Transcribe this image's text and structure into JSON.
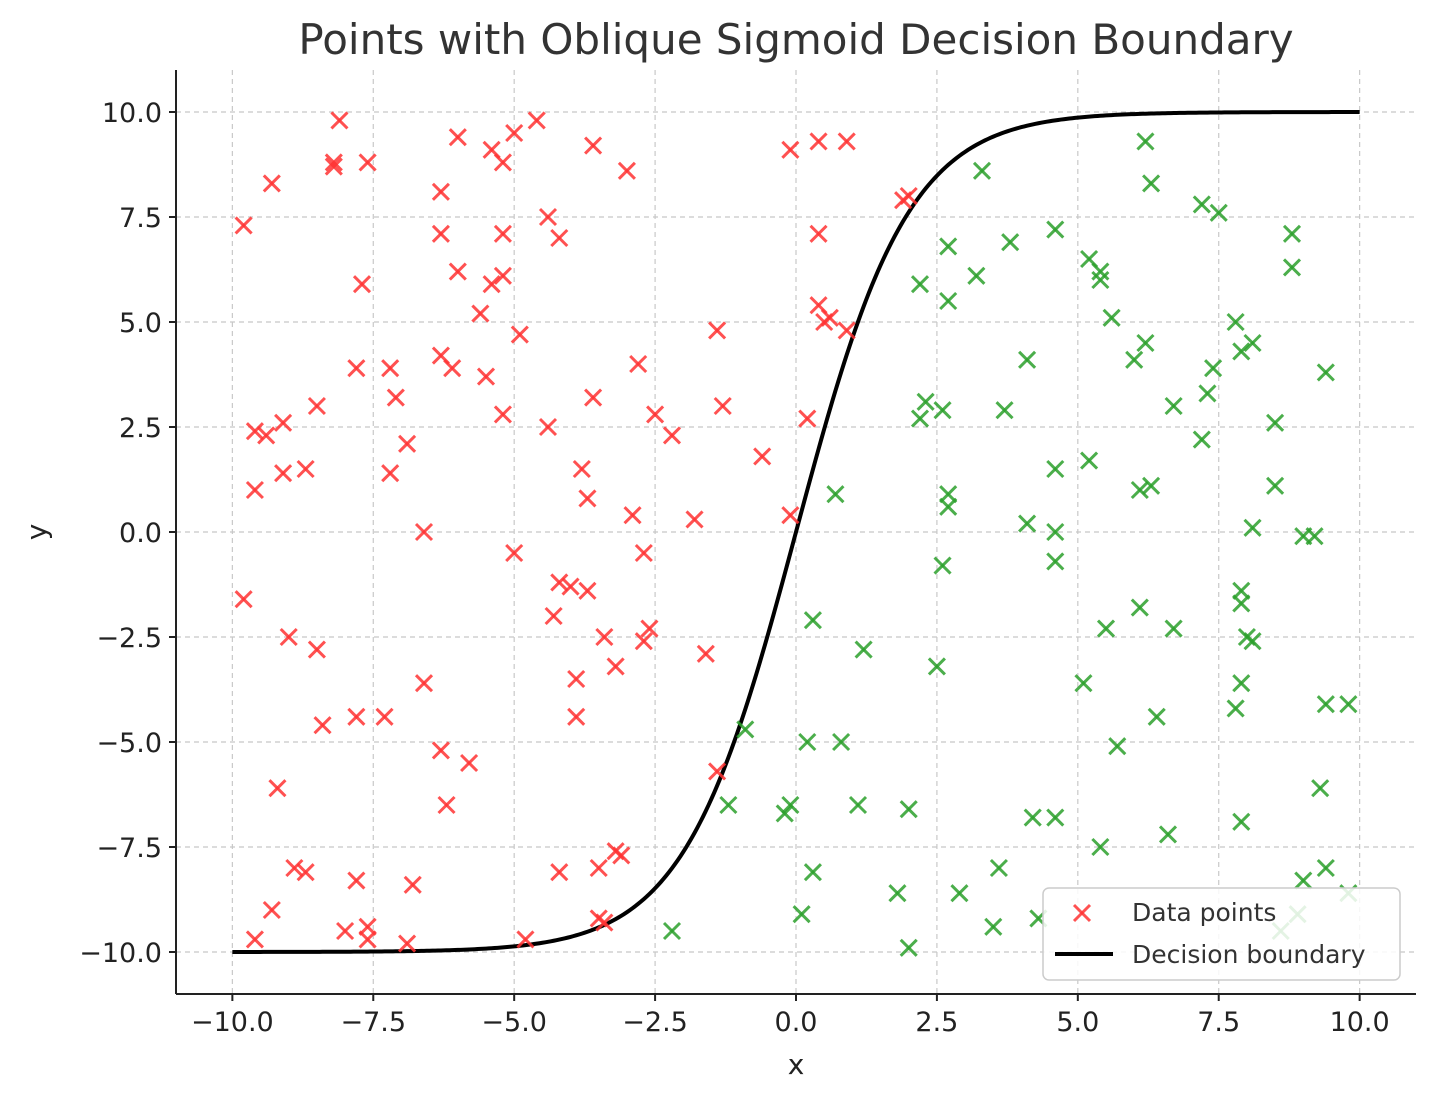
{
  "chart_data": {
    "type": "scatter",
    "title": "Points with Oblique Sigmoid Decision Boundary",
    "xlabel": "x",
    "ylabel": "y",
    "xlim": [
      -11,
      11
    ],
    "ylim": [
      -11,
      11
    ],
    "xticks": [
      -10,
      -7.5,
      -5,
      -2.5,
      0,
      2.5,
      5,
      7.5,
      10
    ],
    "yticks": [
      -10,
      -7.5,
      -5,
      -2.5,
      0,
      2.5,
      5,
      7.5,
      10
    ],
    "xtick_labels": [
      "−10.0",
      "−7.5",
      "−5.0",
      "−2.5",
      "0.0",
      "2.5",
      "5.0",
      "7.5",
      "10.0"
    ],
    "ytick_labels": [
      "−10.0",
      "−7.5",
      "−5.0",
      "−2.5",
      "0.0",
      "2.5",
      "5.0",
      "7.5",
      "10.0"
    ],
    "grid": true,
    "legend": {
      "position": "lower-right",
      "entries": [
        "Data points",
        "Decision boundary"
      ]
    },
    "colors": {
      "class_red": "#ff3333",
      "class_green": "#2ca02c",
      "boundary": "#000000"
    },
    "boundary": {
      "name": "Decision boundary",
      "function": "y = 20/(1+exp(-x)) - 10",
      "x_range": [
        -10,
        10
      ]
    },
    "series": [
      {
        "name": "Data points",
        "color": "#ff3333",
        "points": [
          [
            -9.8,
            7.3
          ],
          [
            -9.3,
            8.3
          ],
          [
            -8.2,
            8.8
          ],
          [
            -8.1,
            9.8
          ],
          [
            -7.6,
            8.8
          ],
          [
            -8.2,
            8.7
          ],
          [
            -6.3,
            8.1
          ],
          [
            -6.0,
            9.4
          ],
          [
            -5.4,
            9.1
          ],
          [
            -5.2,
            8.8
          ],
          [
            -5.0,
            9.5
          ],
          [
            -4.6,
            9.8
          ],
          [
            -3.6,
            9.2
          ],
          [
            -3.0,
            8.6
          ],
          [
            -6.3,
            7.1
          ],
          [
            -5.2,
            7.1
          ],
          [
            -4.4,
            7.5
          ],
          [
            -4.2,
            7.0
          ],
          [
            -6.0,
            6.2
          ],
          [
            -5.2,
            6.1
          ],
          [
            -5.4,
            5.9
          ],
          [
            -7.7,
            5.9
          ],
          [
            -5.6,
            5.2
          ],
          [
            -4.9,
            4.7
          ],
          [
            -7.8,
            3.9
          ],
          [
            -7.2,
            3.9
          ],
          [
            -6.3,
            4.2
          ],
          [
            -6.1,
            3.9
          ],
          [
            -5.5,
            3.7
          ],
          [
            -2.8,
            4.0
          ],
          [
            -1.4,
            4.8
          ],
          [
            -9.6,
            2.4
          ],
          [
            -9.4,
            2.3
          ],
          [
            -9.1,
            2.6
          ],
          [
            -8.5,
            3.0
          ],
          [
            -7.1,
            3.2
          ],
          [
            -6.9,
            2.1
          ],
          [
            -5.2,
            2.8
          ],
          [
            -4.4,
            2.5
          ],
          [
            -3.6,
            3.2
          ],
          [
            -2.5,
            2.8
          ],
          [
            -2.2,
            2.3
          ],
          [
            -1.3,
            3.0
          ],
          [
            -0.6,
            1.8
          ],
          [
            0.2,
            2.7
          ],
          [
            -9.6,
            1.0
          ],
          [
            -9.1,
            1.4
          ],
          [
            -8.7,
            1.5
          ],
          [
            -7.2,
            1.4
          ],
          [
            -3.8,
            1.5
          ],
          [
            -3.7,
            0.8
          ],
          [
            -6.6,
            0.0
          ],
          [
            -2.9,
            0.4
          ],
          [
            -1.8,
            0.3
          ],
          [
            -0.1,
            0.4
          ],
          [
            -9.8,
            -1.6
          ],
          [
            -5.0,
            -0.5
          ],
          [
            -2.7,
            -0.5
          ],
          [
            -4.2,
            -1.2
          ],
          [
            -4.0,
            -1.3
          ],
          [
            -3.7,
            -1.4
          ],
          [
            -9.0,
            -2.5
          ],
          [
            -8.5,
            -2.8
          ],
          [
            -4.3,
            -2.0
          ],
          [
            -3.4,
            -2.5
          ],
          [
            -2.6,
            -2.3
          ],
          [
            -2.7,
            -2.6
          ],
          [
            -1.6,
            -2.9
          ],
          [
            -3.2,
            -3.2
          ],
          [
            -6.6,
            -3.6
          ],
          [
            -3.9,
            -3.5
          ],
          [
            -8.4,
            -4.6
          ],
          [
            -7.8,
            -4.4
          ],
          [
            -7.3,
            -4.4
          ],
          [
            -3.9,
            -4.4
          ],
          [
            -6.3,
            -5.2
          ],
          [
            -5.8,
            -5.5
          ],
          [
            -1.4,
            -5.7
          ],
          [
            -9.2,
            -6.1
          ],
          [
            -6.2,
            -6.5
          ],
          [
            -8.9,
            -8.0
          ],
          [
            -8.7,
            -8.1
          ],
          [
            -7.8,
            -8.3
          ],
          [
            -6.8,
            -8.4
          ],
          [
            -4.2,
            -8.1
          ],
          [
            -3.5,
            -8.0
          ],
          [
            -3.2,
            -7.6
          ],
          [
            -3.1,
            -7.7
          ],
          [
            -9.3,
            -9.0
          ],
          [
            -9.6,
            -9.7
          ],
          [
            -8.0,
            -9.5
          ],
          [
            -7.6,
            -9.4
          ],
          [
            -7.6,
            -9.7
          ],
          [
            -6.9,
            -9.8
          ],
          [
            -4.8,
            -9.7
          ],
          [
            -3.5,
            -9.2
          ],
          [
            -3.4,
            -9.3
          ],
          [
            -0.1,
            9.1
          ],
          [
            0.4,
            9.3
          ],
          [
            0.9,
            9.3
          ],
          [
            1.9,
            7.9
          ],
          [
            2.0,
            8.0
          ],
          [
            0.4,
            7.1
          ],
          [
            0.4,
            5.4
          ],
          [
            0.5,
            5.0
          ],
          [
            0.6,
            5.1
          ],
          [
            0.9,
            4.8
          ]
        ]
      },
      {
        "name": "",
        "color": "#2ca02c",
        "points": [
          [
            6.2,
            9.3
          ],
          [
            6.3,
            8.3
          ],
          [
            3.3,
            8.6
          ],
          [
            7.2,
            7.8
          ],
          [
            7.5,
            7.6
          ],
          [
            8.8,
            7.1
          ],
          [
            8.8,
            6.3
          ],
          [
            4.6,
            7.2
          ],
          [
            3.8,
            6.9
          ],
          [
            2.7,
            6.8
          ],
          [
            3.2,
            6.1
          ],
          [
            2.2,
            5.9
          ],
          [
            2.7,
            5.5
          ],
          [
            5.2,
            6.5
          ],
          [
            5.4,
            6.2
          ],
          [
            5.4,
            6.0
          ],
          [
            5.6,
            5.1
          ],
          [
            7.8,
            5.0
          ],
          [
            7.9,
            4.3
          ],
          [
            8.1,
            4.5
          ],
          [
            6.2,
            4.5
          ],
          [
            6.0,
            4.1
          ],
          [
            4.1,
            4.1
          ],
          [
            7.4,
            3.9
          ],
          [
            9.4,
            3.8
          ],
          [
            2.3,
            3.1
          ],
          [
            2.2,
            2.7
          ],
          [
            2.6,
            2.9
          ],
          [
            3.7,
            2.9
          ],
          [
            6.7,
            3.0
          ],
          [
            7.3,
            3.3
          ],
          [
            7.2,
            2.2
          ],
          [
            8.5,
            2.6
          ],
          [
            5.2,
            1.7
          ],
          [
            4.6,
            1.5
          ],
          [
            6.1,
            1.0
          ],
          [
            6.3,
            1.1
          ],
          [
            8.5,
            1.1
          ],
          [
            0.7,
            0.9
          ],
          [
            2.7,
            0.9
          ],
          [
            2.7,
            0.6
          ],
          [
            4.1,
            0.2
          ],
          [
            4.6,
            0.0
          ],
          [
            8.1,
            0.1
          ],
          [
            9.0,
            -0.1
          ],
          [
            9.2,
            -0.1
          ],
          [
            2.6,
            -0.8
          ],
          [
            4.6,
            -0.7
          ],
          [
            6.1,
            -1.8
          ],
          [
            7.9,
            -1.4
          ],
          [
            7.9,
            -1.7
          ],
          [
            8.0,
            -2.5
          ],
          [
            8.1,
            -2.6
          ],
          [
            5.5,
            -2.3
          ],
          [
            6.7,
            -2.3
          ],
          [
            0.3,
            -2.1
          ],
          [
            1.2,
            -2.8
          ],
          [
            2.5,
            -3.2
          ],
          [
            5.1,
            -3.6
          ],
          [
            7.9,
            -3.6
          ],
          [
            7.8,
            -4.2
          ],
          [
            6.4,
            -4.4
          ],
          [
            9.4,
            -4.1
          ],
          [
            9.8,
            -4.1
          ],
          [
            -0.9,
            -4.7
          ],
          [
            0.2,
            -5.0
          ],
          [
            0.8,
            -5.0
          ],
          [
            5.7,
            -5.1
          ],
          [
            -1.2,
            -6.5
          ],
          [
            -0.1,
            -6.5
          ],
          [
            -0.2,
            -6.7
          ],
          [
            1.1,
            -6.5
          ],
          [
            2.0,
            -6.6
          ],
          [
            4.2,
            -6.8
          ],
          [
            4.6,
            -6.8
          ],
          [
            6.6,
            -7.2
          ],
          [
            7.9,
            -6.9
          ],
          [
            9.3,
            -6.1
          ],
          [
            5.4,
            -7.5
          ],
          [
            3.6,
            -8.0
          ],
          [
            0.3,
            -8.1
          ],
          [
            1.8,
            -8.6
          ],
          [
            2.9,
            -8.6
          ],
          [
            9.0,
            -8.3
          ],
          [
            9.4,
            -8.0
          ],
          [
            9.8,
            -8.6
          ],
          [
            0.1,
            -9.1
          ],
          [
            -2.2,
            -9.5
          ],
          [
            2.0,
            -9.9
          ],
          [
            3.5,
            -9.4
          ],
          [
            4.3,
            -9.2
          ],
          [
            8.6,
            -9.5
          ],
          [
            8.9,
            -9.1
          ]
        ]
      }
    ]
  }
}
